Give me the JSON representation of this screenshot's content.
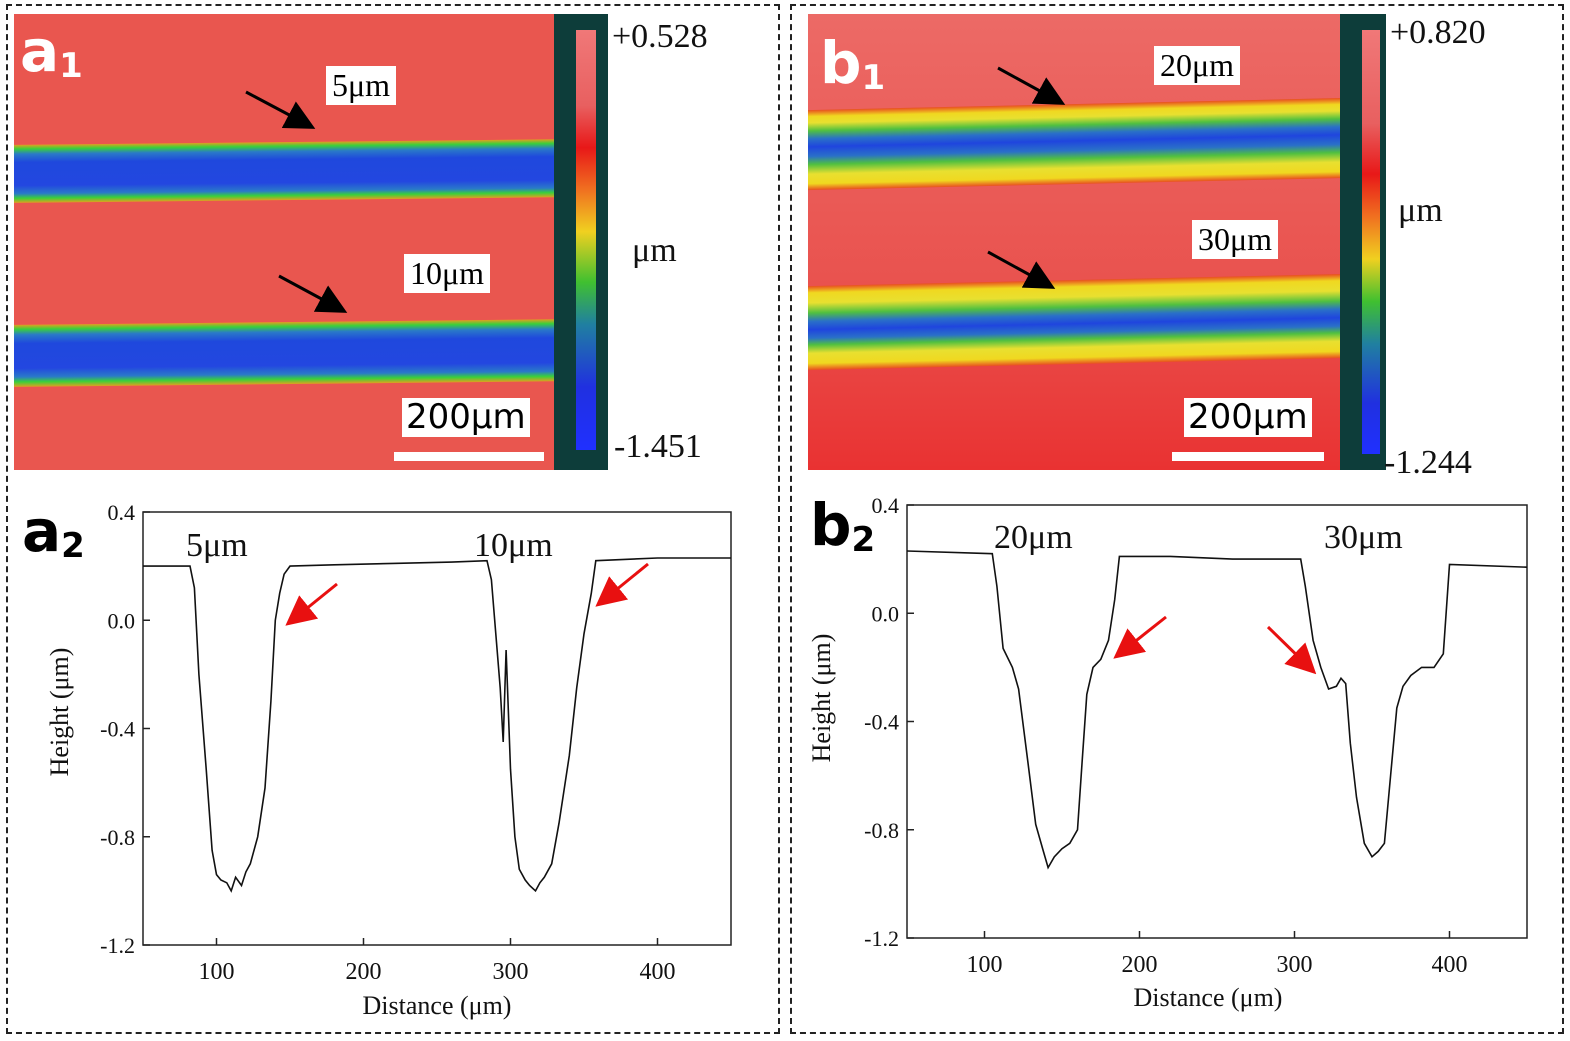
{
  "panel_a": {
    "map_label": "a",
    "map_sub": "1",
    "line1_label": "5μm",
    "line2_label": "10μm",
    "scale_label": "200μm",
    "cbar_max": "+0.528",
    "cbar_min": "-1.451",
    "cbar_unit": "μm",
    "plot_label": "a",
    "plot_sub": "2",
    "plot_annot1": "5μm",
    "plot_annot2": "10μm"
  },
  "panel_b": {
    "map_label": "b",
    "map_sub": "1",
    "line1_label": "20μm",
    "line2_label": "30μm",
    "scale_label": "200μm",
    "cbar_max": "+0.820",
    "cbar_min": "-1.244",
    "cbar_unit": "μm",
    "plot_label": "b",
    "plot_sub": "2",
    "plot_annot1": "20μm",
    "plot_annot2": "30μm"
  },
  "colors": {
    "bg_red": "#e9564f",
    "trench_blue": "#2344e0",
    "ridge_yellow": "#f0e21a",
    "ridge_green": "#22c23a",
    "arrow_red": "#e81010",
    "colorbar_frame": "#0d3d3a"
  },
  "chart_data": [
    {
      "type": "line",
      "title": "",
      "xlabel": "Distance (μm)",
      "ylabel": "Height (μm)",
      "xlim": [
        50,
        450
      ],
      "ylim": [
        -1.2,
        0.4
      ],
      "xticks": [
        "100",
        "200",
        "300",
        "400"
      ],
      "xtick_values": [
        100,
        200,
        300,
        400
      ],
      "yticks": [
        "0.4",
        "0.0",
        "-0.4",
        "-0.8",
        "-1.2"
      ],
      "ytick_values": [
        0.4,
        0.0,
        -0.4,
        -0.8,
        -1.2
      ],
      "annotations": [
        "5μm",
        "10μm"
      ],
      "series": [
        {
          "name": "profile",
          "x": [
            50,
            82,
            85,
            88,
            93,
            97,
            100,
            103,
            107,
            110,
            113,
            117,
            120,
            123,
            128,
            133,
            137,
            140,
            143,
            146,
            150,
            180,
            220,
            260,
            284,
            287,
            290,
            293,
            295,
            297,
            299,
            300,
            303,
            306,
            310,
            313,
            317,
            320,
            323,
            328,
            333,
            340,
            345,
            350,
            355,
            358,
            400,
            450
          ],
          "y": [
            0.2,
            0.2,
            0.12,
            -0.2,
            -0.55,
            -0.85,
            -0.94,
            -0.96,
            -0.97,
            -1.0,
            -0.95,
            -0.98,
            -0.93,
            -0.9,
            -0.8,
            -0.62,
            -0.3,
            0.0,
            0.1,
            0.17,
            0.2,
            0.205,
            0.21,
            0.215,
            0.22,
            0.15,
            -0.05,
            -0.25,
            -0.45,
            -0.11,
            -0.4,
            -0.55,
            -0.8,
            -0.92,
            -0.96,
            -0.98,
            -1.0,
            -0.97,
            -0.95,
            -0.9,
            -0.75,
            -0.5,
            -0.25,
            -0.05,
            0.1,
            0.22,
            0.23,
            0.23
          ]
        }
      ]
    },
    {
      "type": "line",
      "title": "",
      "xlabel": "Distance (μm)",
      "ylabel": "Height (μm)",
      "xlim": [
        50,
        450
      ],
      "ylim": [
        -1.2,
        0.4
      ],
      "xticks": [
        "100",
        "200",
        "300",
        "400"
      ],
      "xtick_values": [
        100,
        200,
        300,
        400
      ],
      "yticks": [
        "0.4",
        "0.0",
        "-0.4",
        "-0.8",
        "-1.2"
      ],
      "ytick_values": [
        0.4,
        0.0,
        -0.4,
        -0.8,
        -1.2
      ],
      "annotations": [
        "20μm",
        "30μm"
      ],
      "series": [
        {
          "name": "profile",
          "x": [
            50,
            105,
            108,
            112,
            118,
            122,
            128,
            133,
            138,
            141,
            145,
            150,
            155,
            160,
            163,
            166,
            170,
            175,
            180,
            184,
            187,
            220,
            260,
            304,
            307,
            312,
            317,
            322,
            327,
            330,
            333,
            336,
            340,
            345,
            350,
            354,
            358,
            362,
            366,
            370,
            375,
            382,
            390,
            396,
            400,
            450
          ],
          "y": [
            0.23,
            0.22,
            0.1,
            -0.13,
            -0.2,
            -0.28,
            -0.55,
            -0.78,
            -0.88,
            -0.94,
            -0.9,
            -0.87,
            -0.85,
            -0.8,
            -0.55,
            -0.3,
            -0.2,
            -0.17,
            -0.1,
            0.05,
            0.21,
            0.21,
            0.2,
            0.2,
            0.1,
            -0.1,
            -0.2,
            -0.28,
            -0.27,
            -0.24,
            -0.26,
            -0.48,
            -0.68,
            -0.85,
            -0.9,
            -0.88,
            -0.85,
            -0.6,
            -0.35,
            -0.27,
            -0.23,
            -0.2,
            -0.2,
            -0.15,
            0.18,
            0.17
          ]
        }
      ]
    }
  ]
}
